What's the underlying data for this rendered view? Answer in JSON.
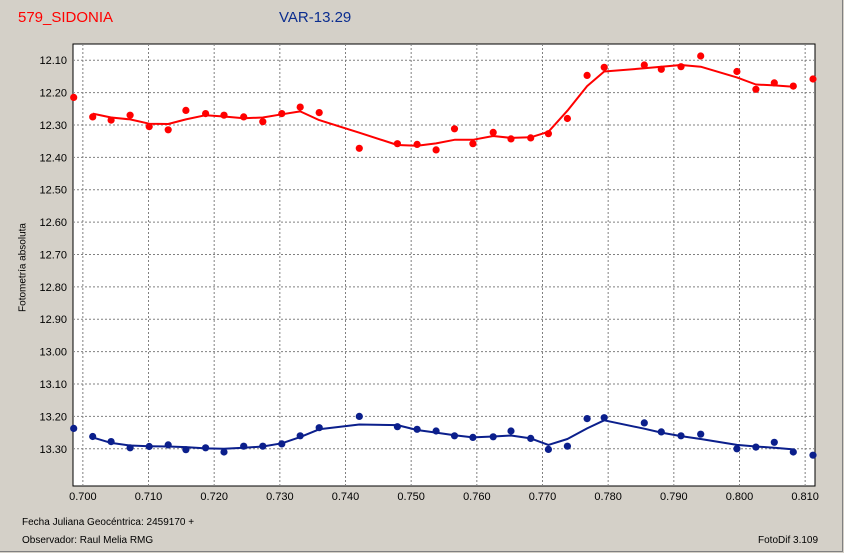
{
  "header": {
    "star_name": "579_SIDONIA",
    "var_label": "VAR-13.29"
  },
  "ylabel": "Fotometría absoluta",
  "footer": {
    "jd_label": "Fecha Juliana Geocéntrica: 2459170 +",
    "observer": "Observador: Raul Melia RMG",
    "software": "FotoDif 3.109"
  },
  "colors": {
    "series_top": "#ff0000",
    "series_bottom": "#0b1f8c",
    "grid": "#808080"
  },
  "chart_data": {
    "type": "scatter",
    "xlim": [
      0.6985,
      0.8115
    ],
    "ylim": [
      13.415,
      12.05
    ],
    "y_inverted": true,
    "grid": true,
    "xticks": [
      "0.700",
      "0.710",
      "0.720",
      "0.730",
      "0.740",
      "0.750",
      "0.760",
      "0.770",
      "0.780",
      "0.790",
      "0.800",
      "0.810"
    ],
    "xtick_values": [
      0.7,
      0.71,
      0.72,
      0.73,
      0.74,
      0.75,
      0.76,
      0.77,
      0.78,
      0.79,
      0.8,
      0.81
    ],
    "yticks": [
      "12.10",
      "12.20",
      "12.30",
      "12.40",
      "12.50",
      "12.60",
      "12.70",
      "12.80",
      "12.90",
      "13.00",
      "13.10",
      "13.20",
      "13.30"
    ],
    "ytick_values": [
      12.1,
      12.2,
      12.3,
      12.4,
      12.5,
      12.6,
      12.7,
      12.8,
      12.9,
      13.0,
      13.1,
      13.2,
      13.3
    ],
    "series": [
      {
        "color": "#ff0000",
        "points": [
          [
            0.6986,
            12.215
          ],
          [
            0.7015,
            12.275
          ],
          [
            0.7043,
            12.285
          ],
          [
            0.7072,
            12.27
          ],
          [
            0.7101,
            12.305
          ],
          [
            0.713,
            12.315
          ],
          [
            0.7157,
            12.255
          ],
          [
            0.7187,
            12.265
          ],
          [
            0.7215,
            12.27
          ],
          [
            0.7245,
            12.275
          ],
          [
            0.7274,
            12.29
          ],
          [
            0.7303,
            12.265
          ],
          [
            0.7331,
            12.245
          ],
          [
            0.736,
            12.262
          ],
          [
            0.7421,
            12.372
          ],
          [
            0.7479,
            12.358
          ],
          [
            0.7509,
            12.36
          ],
          [
            0.7538,
            12.377
          ],
          [
            0.7566,
            12.312
          ],
          [
            0.7594,
            12.358
          ],
          [
            0.7625,
            12.323
          ],
          [
            0.7652,
            12.343
          ],
          [
            0.7682,
            12.34
          ],
          [
            0.7709,
            12.327
          ],
          [
            0.7738,
            12.28
          ],
          [
            0.7768,
            12.147
          ],
          [
            0.7794,
            12.122
          ],
          [
            0.7855,
            12.115
          ],
          [
            0.7881,
            12.128
          ],
          [
            0.7911,
            12.12
          ],
          [
            0.7941,
            12.087
          ],
          [
            0.7996,
            12.135
          ],
          [
            0.8025,
            12.19
          ],
          [
            0.8053,
            12.17
          ],
          [
            0.8082,
            12.18
          ],
          [
            0.8112,
            12.158
          ]
        ],
        "curve": [
          [
            0.7015,
            12.265
          ],
          [
            0.7043,
            12.277
          ],
          [
            0.7072,
            12.283
          ],
          [
            0.7101,
            12.296
          ],
          [
            0.713,
            12.297
          ],
          [
            0.7157,
            12.283
          ],
          [
            0.7187,
            12.27
          ],
          [
            0.7215,
            12.274
          ],
          [
            0.7245,
            12.279
          ],
          [
            0.7274,
            12.277
          ],
          [
            0.7303,
            12.267
          ],
          [
            0.7331,
            12.258
          ],
          [
            0.736,
            12.285
          ],
          [
            0.7421,
            12.324
          ],
          [
            0.7479,
            12.362
          ],
          [
            0.7509,
            12.364
          ],
          [
            0.7538,
            12.357
          ],
          [
            0.7566,
            12.346
          ],
          [
            0.7594,
            12.346
          ],
          [
            0.7625,
            12.334
          ],
          [
            0.7652,
            12.34
          ],
          [
            0.7682,
            12.338
          ],
          [
            0.7709,
            12.321
          ],
          [
            0.7738,
            12.256
          ],
          [
            0.7768,
            12.18
          ],
          [
            0.7794,
            12.135
          ],
          [
            0.7855,
            12.125
          ],
          [
            0.7881,
            12.12
          ],
          [
            0.7911,
            12.115
          ],
          [
            0.7941,
            12.12
          ],
          [
            0.7996,
            12.153
          ],
          [
            0.8025,
            12.175
          ],
          [
            0.8053,
            12.178
          ],
          [
            0.8082,
            12.182
          ]
        ]
      },
      {
        "color": "#0b1f8c",
        "points": [
          [
            0.6986,
            13.237
          ],
          [
            0.7015,
            13.262
          ],
          [
            0.7043,
            13.278
          ],
          [
            0.7072,
            13.297
          ],
          [
            0.7101,
            13.293
          ],
          [
            0.713,
            13.288
          ],
          [
            0.7157,
            13.303
          ],
          [
            0.7187,
            13.297
          ],
          [
            0.7215,
            13.31
          ],
          [
            0.7245,
            13.292
          ],
          [
            0.7274,
            13.292
          ],
          [
            0.7303,
            13.285
          ],
          [
            0.7331,
            13.26
          ],
          [
            0.736,
            13.235
          ],
          [
            0.7421,
            13.2
          ],
          [
            0.7479,
            13.232
          ],
          [
            0.7509,
            13.24
          ],
          [
            0.7538,
            13.245
          ],
          [
            0.7566,
            13.26
          ],
          [
            0.7594,
            13.265
          ],
          [
            0.7625,
            13.263
          ],
          [
            0.7652,
            13.245
          ],
          [
            0.7682,
            13.268
          ],
          [
            0.7709,
            13.302
          ],
          [
            0.7738,
            13.292
          ],
          [
            0.7768,
            13.207
          ],
          [
            0.7794,
            13.204
          ],
          [
            0.7855,
            13.22
          ],
          [
            0.7881,
            13.248
          ],
          [
            0.7911,
            13.26
          ],
          [
            0.7941,
            13.255
          ],
          [
            0.7996,
            13.3
          ],
          [
            0.8025,
            13.295
          ],
          [
            0.8053,
            13.28
          ],
          [
            0.8082,
            13.31
          ],
          [
            0.8112,
            13.32
          ]
        ],
        "curve": [
          [
            0.7015,
            13.265
          ],
          [
            0.7043,
            13.282
          ],
          [
            0.7072,
            13.29
          ],
          [
            0.7101,
            13.292
          ],
          [
            0.713,
            13.293
          ],
          [
            0.7157,
            13.295
          ],
          [
            0.7187,
            13.299
          ],
          [
            0.7215,
            13.3
          ],
          [
            0.7245,
            13.297
          ],
          [
            0.7274,
            13.293
          ],
          [
            0.7303,
            13.283
          ],
          [
            0.7331,
            13.264
          ],
          [
            0.736,
            13.24
          ],
          [
            0.7421,
            13.225
          ],
          [
            0.7479,
            13.227
          ],
          [
            0.7509,
            13.242
          ],
          [
            0.7538,
            13.25
          ],
          [
            0.7566,
            13.258
          ],
          [
            0.7594,
            13.265
          ],
          [
            0.7625,
            13.262
          ],
          [
            0.7652,
            13.259
          ],
          [
            0.7682,
            13.268
          ],
          [
            0.7709,
            13.288
          ],
          [
            0.7738,
            13.27
          ],
          [
            0.7768,
            13.237
          ],
          [
            0.7794,
            13.212
          ],
          [
            0.7855,
            13.238
          ],
          [
            0.7881,
            13.25
          ],
          [
            0.7911,
            13.261
          ],
          [
            0.7941,
            13.27
          ],
          [
            0.7996,
            13.288
          ],
          [
            0.8025,
            13.293
          ],
          [
            0.8053,
            13.297
          ],
          [
            0.8082,
            13.302
          ]
        ]
      }
    ]
  }
}
